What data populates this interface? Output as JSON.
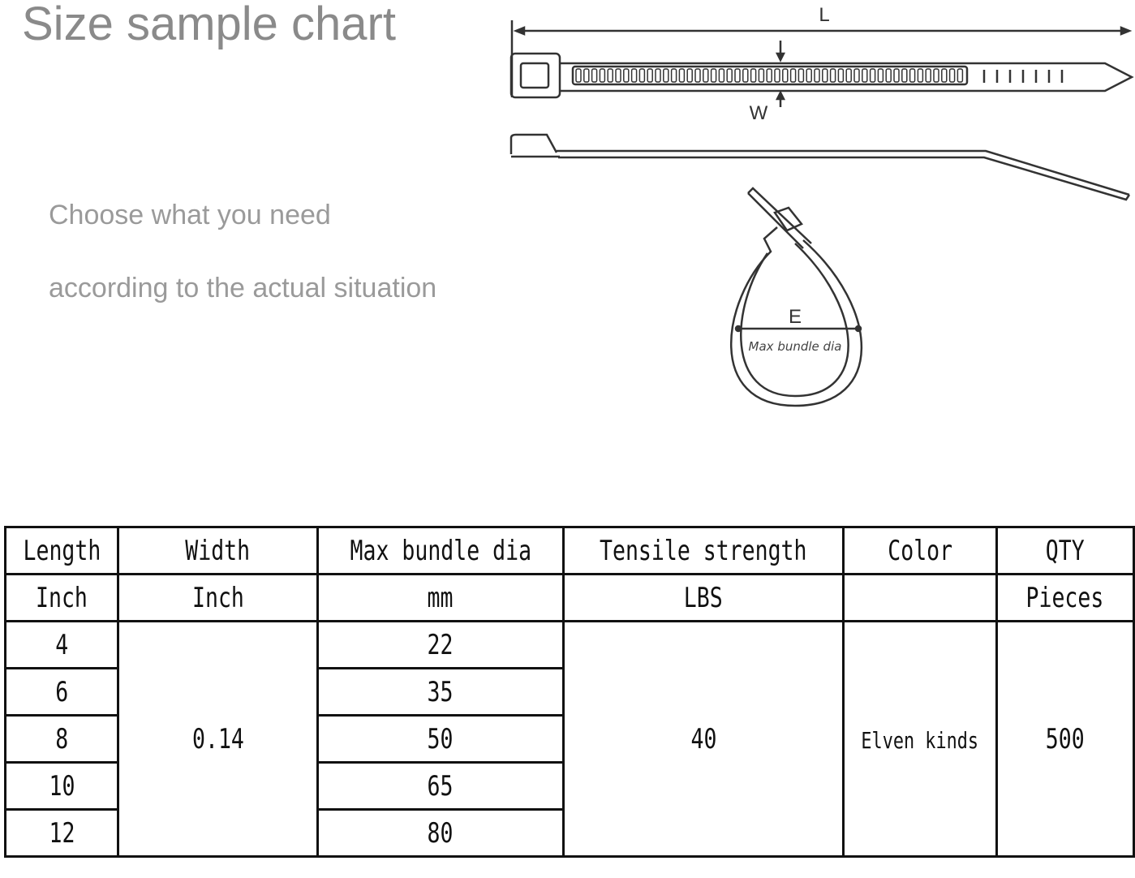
{
  "header": {
    "title": "Size sample chart",
    "subtitle_lines": [
      "Choose what you need",
      "according to the actual situation"
    ]
  },
  "diagram": {
    "length_label": "L",
    "width_label": "W",
    "diameter_label": "E",
    "diameter_caption": "Max bundle dia"
  },
  "table": {
    "headers": [
      "Length",
      "Width",
      "Max bundle dia",
      "Tensile strength",
      "Color",
      "QTY"
    ],
    "units": [
      "Inch",
      "Inch",
      "mm",
      "LBS",
      "",
      "Pieces"
    ],
    "rows": [
      {
        "length": "4",
        "max_bundle_dia": "22"
      },
      {
        "length": "6",
        "max_bundle_dia": "35"
      },
      {
        "length": "8",
        "max_bundle_dia": "50"
      },
      {
        "length": "10",
        "max_bundle_dia": "65"
      },
      {
        "length": "12",
        "max_bundle_dia": "80"
      }
    ],
    "width": "0.14",
    "tensile_strength": "40",
    "color": "Elven kinds",
    "qty": "500"
  }
}
